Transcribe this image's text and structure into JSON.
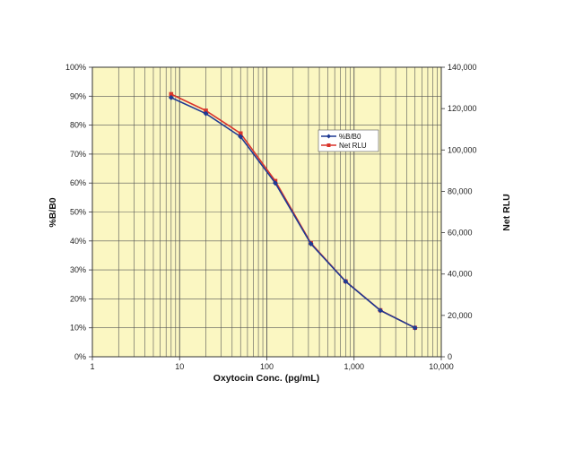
{
  "chart_data": {
    "type": "line",
    "title": "",
    "xlabel": "Oxytocin Conc. (pg/mL)",
    "ylabel_left": "%B/B0",
    "ylabel_right": "Net RLU",
    "x_scale": "log",
    "xlim": [
      1,
      10000
    ],
    "ylim_left": [
      0,
      100
    ],
    "ylim_right": [
      0,
      140000
    ],
    "x_ticks": [
      "1",
      "10",
      "100",
      "1,000",
      "10,000"
    ],
    "y_ticks_left": [
      "0%",
      "10%",
      "20%",
      "30%",
      "40%",
      "50%",
      "60%",
      "70%",
      "80%",
      "90%",
      "100%"
    ],
    "y_ticks_right": [
      "0",
      "20,000",
      "40,000",
      "60,000",
      "80,000",
      "100,000",
      "120,000",
      "140,000"
    ],
    "grid": true,
    "legend_position": "center-right",
    "series": [
      {
        "name": "%B/B0",
        "axis": "left",
        "color": "#1f3a93",
        "marker": "diamond",
        "x": [
          8,
          20,
          50,
          125,
          320,
          800,
          2000,
          5000
        ],
        "y": [
          89.5,
          84,
          76,
          60,
          39,
          26,
          16,
          10
        ]
      },
      {
        "name": "Net RLU",
        "axis": "right",
        "color": "#d9342b",
        "marker": "square",
        "x": [
          8,
          20,
          50,
          125,
          320,
          800,
          2000,
          5000
        ],
        "y": [
          127000,
          119000,
          108000,
          85000,
          55000,
          36500,
          22500,
          14000
        ]
      }
    ]
  },
  "colors": {
    "plot_background": "#fbf7c2",
    "grid": "#555555"
  }
}
